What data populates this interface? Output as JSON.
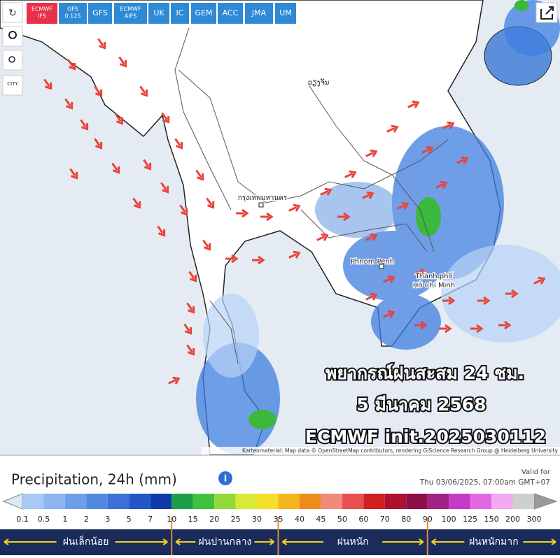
{
  "toolbar": {
    "models": [
      [
        "ECMWF",
        "IFS"
      ],
      [
        "GFS",
        "0.125"
      ],
      [
        "GFS"
      ],
      [
        "ECMWF",
        "AIFS"
      ],
      [
        "UK"
      ],
      [
        "IC"
      ],
      [
        "GEM"
      ],
      [
        "ACC"
      ],
      [
        "JMA"
      ],
      [
        "UM"
      ]
    ],
    "city_button": "CITY"
  },
  "map": {
    "places": [
      "ວຽງຈັນ",
      "กรุงเทพมหานคร",
      "Phnom Penh",
      [
        "Thành phố",
        "Hồ Chí Minh"
      ]
    ],
    "overlay": [
      "พยากรณ์ฝนสะสม 24 ชม.",
      "5 มีนาคม 2568",
      "ECMWF init.2025030112"
    ],
    "attribution": "Kartenmaterial: Map data © OpenStreetMap contributors, rendering GIScience Research Group @ Heidelberg University"
  },
  "legend": {
    "title": "Precipitation, 24h (mm)",
    "valid_label": "Valid for",
    "valid_time": "Thu 03/06/2025, 07:00am GMT+07",
    "scale_labels": [
      0.1,
      0.5,
      1,
      2,
      3,
      5,
      7,
      10,
      15,
      20,
      25,
      30,
      35,
      40,
      45,
      50,
      60,
      70,
      80,
      90,
      100,
      125,
      150,
      200,
      300
    ],
    "colors": [
      "#a9c9f4",
      "#8cb6ef",
      "#6c9fe8",
      "#5189e0",
      "#3b70d6",
      "#2356c8",
      "#0d3aa6",
      "#1e9e48",
      "#3dc23c",
      "#93d83a",
      "#dae838",
      "#f4de2a",
      "#f5b51f",
      "#ef8a1c",
      "#f28a7a",
      "#e85050",
      "#d02020",
      "#b01030",
      "#8e1048",
      "#a02488",
      "#c838c8",
      "#e268e2",
      "#f2a8f2",
      "#cfcfcf"
    ],
    "categories": [
      "ฝนเล็กน้อย",
      "ฝนปานกลาง",
      "ฝนหนัก",
      "ฝนหนักมาก"
    ]
  }
}
